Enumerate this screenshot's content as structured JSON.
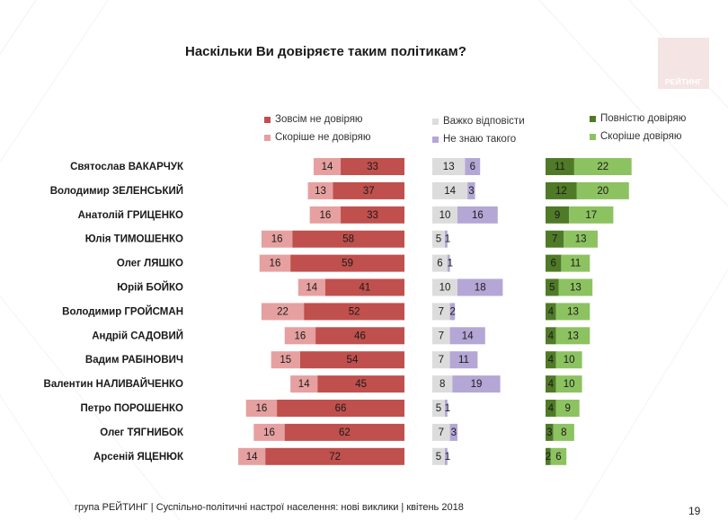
{
  "title": "Наскільки Ви довіряєте таким політикам?",
  "logo_text": "РЕЙТИНГ",
  "footer": "група РЕЙТИНГ  |  Суспільно-політичні настрої населення: нові виклики  |  квітень 2018",
  "page_number": "19",
  "colors": {
    "not_trust_at_all": "#c0504d",
    "rather_not_trust": "#e6a0a0",
    "hard_to_say": "#dcdcdc",
    "dont_know": "#b4a7d6",
    "fully_trust": "#4f7a28",
    "rather_trust": "#8dc261"
  },
  "chart_data": {
    "type": "bar",
    "orientation": "horizontal",
    "categories": [
      "Святослав ВАКАРЧУК",
      "Володимир ЗЕЛЕНСЬКИЙ",
      "Анатолій ГРИЦЕНКО",
      "Юлія ТИМОШЕНКО",
      "Олег ЛЯШКО",
      "Юрій БОЙКО",
      "Володимир ГРОЙСМАН",
      "Андрій САДОВИЙ",
      "Вадим РАБІНОВИЧ",
      "Валентин НАЛИВАЙЧЕНКО",
      "Петро ПОРОШЕНКО",
      "Олег ТЯГНИБОК",
      "Арсеній ЯЦЕНЮК"
    ],
    "groups": [
      {
        "stack": "left",
        "series": [
          {
            "name": "Зовсім не довіряю",
            "color": "#c0504d",
            "values": [
              33,
              37,
              33,
              58,
              59,
              41,
              52,
              46,
              54,
              45,
              66,
              62,
              72
            ]
          },
          {
            "name": "Скоріше не довіряю",
            "color": "#e6a0a0",
            "values": [
              14,
              13,
              16,
              16,
              16,
              14,
              22,
              16,
              15,
              14,
              16,
              16,
              14
            ]
          }
        ]
      },
      {
        "stack": "right",
        "series": [
          {
            "name": "Важко відповісти",
            "color": "#dcdcdc",
            "values": [
              13,
              14,
              10,
              5,
              6,
              10,
              7,
              7,
              7,
              8,
              5,
              7,
              5
            ]
          },
          {
            "name": "Не знаю такого",
            "color": "#b4a7d6",
            "values": [
              6,
              3,
              16,
              1,
              1,
              18,
              2,
              14,
              11,
              19,
              1,
              3,
              1
            ]
          }
        ]
      },
      {
        "stack": "right",
        "series": [
          {
            "name": "Повністю довіряю",
            "color": "#4f7a28",
            "values": [
              11,
              12,
              9,
              7,
              6,
              5,
              4,
              4,
              4,
              4,
              4,
              3,
              2
            ]
          },
          {
            "name": "Скоріше довіряю",
            "color": "#8dc261",
            "values": [
              22,
              20,
              17,
              13,
              11,
              13,
              13,
              13,
              10,
              10,
              9,
              8,
              6
            ]
          }
        ]
      }
    ]
  }
}
